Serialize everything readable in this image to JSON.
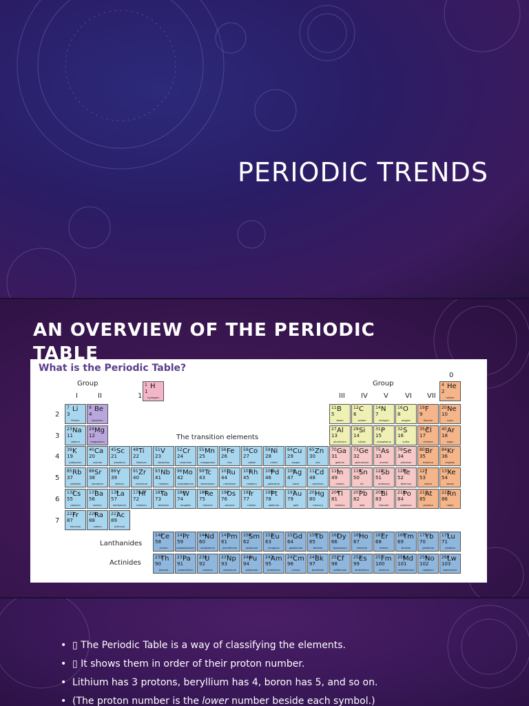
{
  "slide1": {
    "title": "PERIODIC TRENDS"
  },
  "slide2": {
    "title": "AN OVERVIEW OF THE PERIODIC TABLE",
    "image": {
      "heading": "What is the Periodic Table?",
      "group_label": "Group",
      "groups": [
        "I",
        "II",
        "III",
        "IV",
        "V",
        "VI",
        "VII",
        "0"
      ],
      "periods": [
        "1",
        "2",
        "3",
        "4",
        "5",
        "6",
        "7"
      ],
      "transition_label": "The transition elements",
      "rows": [
        [
          [
            "1",
            "H",
            "1",
            "hydrogen"
          ],
          null,
          null,
          null,
          null,
          null,
          null,
          null,
          null,
          null,
          null,
          null,
          null,
          null,
          null,
          null,
          null,
          [
            "4",
            "He",
            "2",
            "helium"
          ]
        ],
        [
          [
            "7",
            "Li",
            "3",
            "lithium"
          ],
          [
            "9",
            "Be",
            "4",
            "beryllium"
          ],
          null,
          null,
          null,
          null,
          null,
          null,
          null,
          null,
          null,
          null,
          [
            "11",
            "B",
            "5",
            "boron"
          ],
          [
            "12",
            "C",
            "6",
            "carbon"
          ],
          [
            "14",
            "N",
            "7",
            "nitrogen"
          ],
          [
            "16",
            "O",
            "8",
            "oxygen"
          ],
          [
            "19",
            "F",
            "9",
            "fluorine"
          ],
          [
            "20",
            "Ne",
            "10",
            "neon"
          ]
        ],
        [
          [
            "23",
            "Na",
            "11",
            "sodium"
          ],
          [
            "24",
            "Mg",
            "12",
            "magnesium"
          ],
          null,
          null,
          null,
          null,
          null,
          null,
          null,
          null,
          null,
          null,
          [
            "27",
            "Al",
            "13",
            "aluminium"
          ],
          [
            "28",
            "Si",
            "14",
            "silicon"
          ],
          [
            "31",
            "P",
            "15",
            "phosphorus"
          ],
          [
            "32",
            "S",
            "16",
            "sulfur"
          ],
          [
            "35.5",
            "Cl",
            "17",
            "chlorine"
          ],
          [
            "40",
            "Ar",
            "18",
            "argon"
          ]
        ],
        [
          [
            "39",
            "K",
            "19",
            "potassium"
          ],
          [
            "40",
            "Ca",
            "20",
            "calcium"
          ],
          [
            "45",
            "Sc",
            "21",
            "scandium"
          ],
          [
            "48",
            "Ti",
            "22",
            "titanium"
          ],
          [
            "51",
            "V",
            "23",
            "vanadium"
          ],
          [
            "52",
            "Cr",
            "24",
            "chromium"
          ],
          [
            "55",
            "Mn",
            "25",
            "manganese"
          ],
          [
            "56",
            "Fe",
            "26",
            "iron"
          ],
          [
            "59",
            "Co",
            "27",
            "cobalt"
          ],
          [
            "59",
            "Ni",
            "28",
            "nickel"
          ],
          [
            "64",
            "Cu",
            "29",
            "copper"
          ],
          [
            "65",
            "Zn",
            "30",
            "zinc"
          ],
          [
            "70",
            "Ga",
            "31",
            "gallium"
          ],
          [
            "73",
            "Ge",
            "32",
            "germanium"
          ],
          [
            "75",
            "As",
            "33",
            "arsenic"
          ],
          [
            "79",
            "Se",
            "34",
            "selenium"
          ],
          [
            "80",
            "Br",
            "35",
            "bromine"
          ],
          [
            "84",
            "Kr",
            "36",
            "krypton"
          ]
        ],
        [
          [
            "85",
            "Rb",
            "37",
            "rubidium"
          ],
          [
            "88",
            "Sr",
            "38",
            "strontium"
          ],
          [
            "89",
            "Y",
            "39",
            "yttrium"
          ],
          [
            "91",
            "Zr",
            "40",
            "zirconium"
          ],
          [
            "93",
            "Nb",
            "41",
            "niobium"
          ],
          [
            "96",
            "Mo",
            "42",
            "molybdenum"
          ],
          [
            "99",
            "Tc",
            "43",
            "technetium"
          ],
          [
            "101",
            "Ru",
            "44",
            "ruthenium"
          ],
          [
            "103",
            "Rh",
            "45",
            "rhodium"
          ],
          [
            "106",
            "Pd",
            "46",
            "palladium"
          ],
          [
            "108",
            "Ag",
            "47",
            "silver"
          ],
          [
            "112",
            "Cd",
            "48",
            "cadmium"
          ],
          [
            "115",
            "In",
            "49",
            "indium"
          ],
          [
            "119",
            "Sn",
            "50",
            "tin"
          ],
          [
            "122",
            "Sb",
            "51",
            "antimony"
          ],
          [
            "128",
            "Te",
            "52",
            "tellurium"
          ],
          [
            "127",
            "I",
            "53",
            "iodine"
          ],
          [
            "131",
            "Xe",
            "54",
            "xenon"
          ]
        ],
        [
          [
            "133",
            "Cs",
            "55",
            "caesium"
          ],
          [
            "137",
            "Ba",
            "56",
            "barium"
          ],
          [
            "139",
            "La",
            "57",
            "lanthanum"
          ],
          [
            "178.5",
            "Hf",
            "72",
            "hafnium"
          ],
          [
            "181",
            "Ta",
            "73",
            "tantalum"
          ],
          [
            "184",
            "W",
            "74",
            "tungsten"
          ],
          [
            "186",
            "Re",
            "75",
            "rhenium"
          ],
          [
            "190",
            "Os",
            "76",
            "osmium"
          ],
          [
            "192",
            "Ir",
            "77",
            "iridium"
          ],
          [
            "195",
            "Pt",
            "78",
            "platinum"
          ],
          [
            "197",
            "Au",
            "79",
            "gold"
          ],
          [
            "201",
            "Hg",
            "80",
            "mercury"
          ],
          [
            "204",
            "Tl",
            "81",
            "thallium"
          ],
          [
            "207",
            "Pb",
            "82",
            "lead"
          ],
          [
            "209",
            "Bi",
            "83",
            "bismuth"
          ],
          [
            "210",
            "Po",
            "84",
            "polonium"
          ],
          [
            "210",
            "At",
            "85",
            "astatine"
          ],
          [
            "222",
            "Rn",
            "86",
            "radon"
          ]
        ],
        [
          [
            "223",
            "Fr",
            "87",
            "francium"
          ],
          [
            "226",
            "Ra",
            "88",
            "radium"
          ],
          [
            "227",
            "Ac",
            "89",
            "actinium"
          ],
          null,
          null,
          null,
          null,
          null,
          null,
          null,
          null,
          null,
          null,
          null,
          null,
          null,
          null,
          null
        ]
      ],
      "lanthanides_label": "Lanthanides",
      "actinides_label": "Actinides",
      "lanthanides": [
        [
          "140",
          "Ce",
          "58",
          "cerium"
        ],
        [
          "141",
          "Pr",
          "59",
          "praseodymium"
        ],
        [
          "144",
          "Nd",
          "60",
          "neodymium"
        ],
        [
          "147",
          "Pm",
          "61",
          "promethium"
        ],
        [
          "150",
          "Sm",
          "62",
          "samarium"
        ],
        [
          "152",
          "Eu",
          "63",
          "europium"
        ],
        [
          "157",
          "Gd",
          "64",
          "gadolinium"
        ],
        [
          "159",
          "Tb",
          "65",
          "terbium"
        ],
        [
          "162",
          "Dy",
          "66",
          "dysprosium"
        ],
        [
          "165",
          "Ho",
          "67",
          "holmium"
        ],
        [
          "167",
          "Er",
          "68",
          "erbium"
        ],
        [
          "169",
          "Tm",
          "69",
          "thulium"
        ],
        [
          "173",
          "Yb",
          "70",
          "ytterbium"
        ],
        [
          "175",
          "Lu",
          "71",
          "lutetium"
        ]
      ],
      "actinides": [
        [
          "232",
          "Th",
          "90",
          "thorium"
        ],
        [
          "231",
          "Pa",
          "91",
          "protactinium"
        ],
        [
          "238",
          "U",
          "92",
          "uranium"
        ],
        [
          "237",
          "Np",
          "93",
          "neptunium"
        ],
        [
          "244",
          "Pu",
          "94",
          "plutonium"
        ],
        [
          "243",
          "Am",
          "95",
          "americium"
        ],
        [
          "247",
          "Cm",
          "96",
          "curium"
        ],
        [
          "247",
          "Bk",
          "97",
          "berkelium"
        ],
        [
          "251",
          "Cf",
          "98",
          "californium"
        ],
        [
          "252",
          "Es",
          "99",
          "einsteinium"
        ],
        [
          "257",
          "Fm",
          "100",
          "fermium"
        ],
        [
          "258",
          "Md",
          "101",
          "mendelevium"
        ],
        [
          "259",
          "No",
          "102",
          "nobelium"
        ],
        [
          "260",
          "Lw",
          "103",
          "lawrencium"
        ]
      ]
    }
  },
  "slide3": {
    "bullets": [
      {
        "text": "▯ The Periodic Table is a way of classifying the elements."
      },
      {
        "text": "▯ It shows them in order of their proton number."
      },
      {
        "text": "Lithium has 3 protons, beryllium has 4, boron has 5, and so on."
      },
      {
        "before": "(The proton number is the ",
        "em": "lower",
        "after": " number beside each symbol.)"
      }
    ]
  }
}
